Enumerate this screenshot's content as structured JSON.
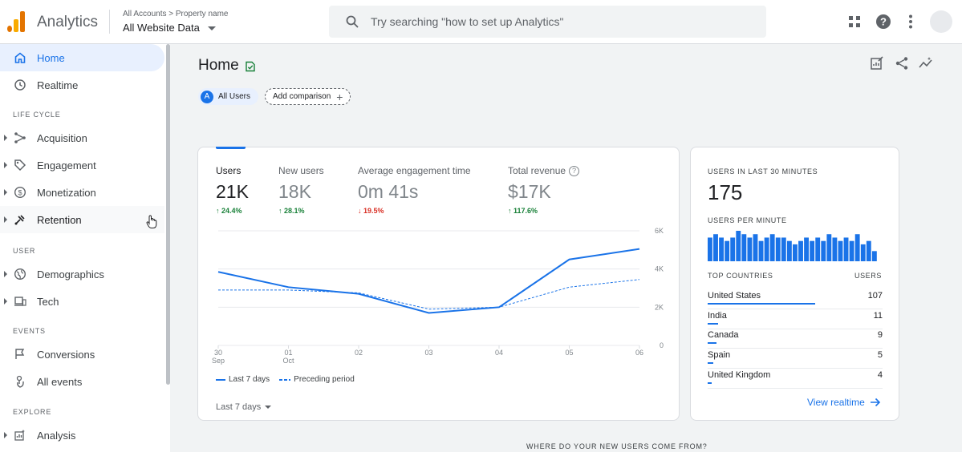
{
  "app": {
    "name": "Analytics"
  },
  "account": {
    "breadcrumb": "All Accounts > Property name",
    "name": "All Website Data"
  },
  "search": {
    "placeholder": "Try searching \"how to set up Analytics\""
  },
  "topbar_icons": [
    "apps-icon",
    "help-icon",
    "more-vert-icon",
    "avatar"
  ],
  "sidebar": {
    "items": [
      {
        "label": "Home",
        "icon": "home-icon",
        "active": true
      },
      {
        "label": "Realtime",
        "icon": "clock-icon"
      }
    ],
    "sections": [
      {
        "header": "LIFE CYCLE",
        "items": [
          {
            "label": "Acquisition",
            "icon": "acquisition-icon"
          },
          {
            "label": "Engagement",
            "icon": "tag-icon"
          },
          {
            "label": "Monetization",
            "icon": "dollar-icon"
          },
          {
            "label": "Retention",
            "icon": "retention-icon"
          }
        ]
      },
      {
        "header": "USER",
        "items": [
          {
            "label": "Demographics",
            "icon": "globe-icon"
          },
          {
            "label": "Tech",
            "icon": "devices-icon"
          }
        ]
      },
      {
        "header": "EVENTS",
        "items": [
          {
            "label": "Conversions",
            "icon": "flag-icon"
          },
          {
            "label": "All events",
            "icon": "touch-icon"
          }
        ]
      },
      {
        "header": "EXPLORE",
        "items": [
          {
            "label": "Analysis",
            "icon": "analysis-icon"
          }
        ]
      }
    ]
  },
  "page": {
    "title": "Home",
    "chips": {
      "segment_badge": "A",
      "segment": "All Users",
      "add": "Add comparison"
    },
    "bottom_heading": "WHERE DO YOUR NEW USERS COME FROM?"
  },
  "metrics": [
    {
      "label": "Users",
      "value": "21K",
      "delta": "24.4%",
      "direction": "up"
    },
    {
      "label": "New users",
      "value": "18K",
      "delta": "28.1%",
      "direction": "up"
    },
    {
      "label": "Average engagement time",
      "value": "0m 41s",
      "delta": "19.5%",
      "direction": "down"
    },
    {
      "label": "Total revenue",
      "value": "$17K",
      "delta": "117.6%",
      "direction": "up"
    }
  ],
  "chart_data": {
    "type": "line",
    "x": [
      "30 Sep",
      "01 Oct",
      "02",
      "03",
      "04",
      "05",
      "06"
    ],
    "x_ticks": [
      [
        "30",
        "Sep"
      ],
      [
        "01",
        "Oct"
      ],
      [
        "02",
        ""
      ],
      [
        "03",
        ""
      ],
      [
        "04",
        ""
      ],
      [
        "05",
        ""
      ],
      [
        "06",
        ""
      ]
    ],
    "y_ticks": [
      "0",
      "2K",
      "4K",
      "6K"
    ],
    "ylim": [
      0,
      6000
    ],
    "series": [
      {
        "name": "Last 7 days",
        "style": "solid",
        "values": [
          3850,
          3050,
          2700,
          1700,
          2000,
          4500,
          5050
        ]
      },
      {
        "name": "Preceding period",
        "style": "dashed",
        "values": [
          2900,
          2900,
          2750,
          1900,
          2000,
          3050,
          3450
        ]
      }
    ],
    "color": "#1a73e8"
  },
  "date_range": "Last 7 days",
  "realtime": {
    "title": "USERS IN LAST 30 MINUTES",
    "value": "175",
    "per_minute_label": "USERS PER MINUTE",
    "per_minute_values": [
      7,
      8,
      7,
      6,
      7,
      9,
      8,
      7,
      8,
      6,
      7,
      8,
      7,
      7,
      6,
      5,
      6,
      7,
      6,
      7,
      6,
      8,
      7,
      6,
      7,
      6,
      8,
      5,
      6,
      3
    ],
    "col_country": "TOP COUNTRIES",
    "col_users": "USERS",
    "countries": [
      {
        "name": "United States",
        "users": "107",
        "share": 1.0
      },
      {
        "name": "India",
        "users": "11",
        "share": 0.1
      },
      {
        "name": "Canada",
        "users": "9",
        "share": 0.08
      },
      {
        "name": "Spain",
        "users": "5",
        "share": 0.05
      },
      {
        "name": "United Kingdom",
        "users": "4",
        "share": 0.04
      }
    ],
    "view_link": "View realtime"
  }
}
